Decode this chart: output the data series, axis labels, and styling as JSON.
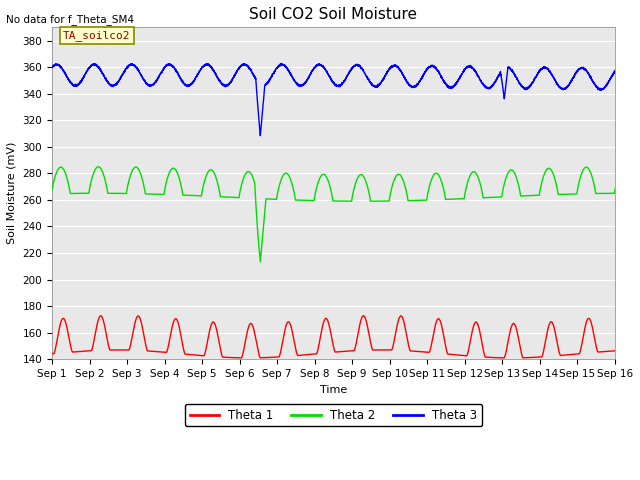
{
  "title": "Soil CO2 Soil Moisture",
  "top_left_text": "No data for f_Theta_SM4",
  "box_label": "TA_soilco2",
  "xlabel": "Time",
  "ylabel": "Soil Moisture (mV)",
  "ylim": [
    140,
    390
  ],
  "xlim": [
    0,
    15
  ],
  "xtick_labels": [
    "Sep 1",
    "Sep 2",
    "Sep 3",
    "Sep 4",
    "Sep 5",
    "Sep 6",
    "Sep 7",
    "Sep 8",
    "Sep 9",
    "Sep 10",
    "Sep 11",
    "Sep 12",
    "Sep 13",
    "Sep 14",
    "Sep 15",
    "Sep 16"
  ],
  "background_color": "#e8e8e8",
  "line_colors": [
    "red",
    "#00dd00",
    "blue"
  ],
  "legend_labels": [
    "Theta 1",
    "Theta 2",
    "Theta 3"
  ],
  "title_fontsize": 11,
  "axis_fontsize": 8,
  "tick_fontsize": 7.5
}
